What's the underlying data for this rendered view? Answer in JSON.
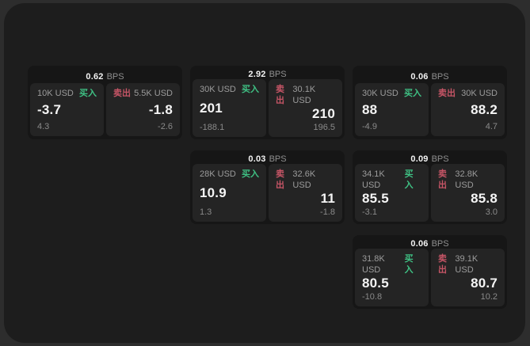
{
  "labels": {
    "bps_unit": "BPS",
    "buy": "买入",
    "sell": "卖出"
  },
  "colors": {
    "page_bg": "#2d2d2d",
    "panel_bg": "#1d1d1d",
    "card_bg": "#161616",
    "subcard_bg": "#242424",
    "buy_green": "#3fc184",
    "sell_red": "#c65566",
    "value_white": "#f5f5f5",
    "muted_gray": "#9c9c9c"
  },
  "cards": [
    {
      "bps": "0.62",
      "buy": {
        "notional": "10K USD",
        "value": "-3.7",
        "change": "4.3"
      },
      "sell": {
        "notional": "5.5K USD",
        "value": "-1.8",
        "change": "-2.6"
      }
    },
    {
      "bps": "2.92",
      "buy": {
        "notional": "30K USD",
        "value": "201",
        "change": "-188.1"
      },
      "sell": {
        "notional": "30.1K USD",
        "value": "210",
        "change": "196.5"
      }
    },
    {
      "bps": "0.06",
      "buy": {
        "notional": "30K USD",
        "value": "88",
        "change": "-4.9"
      },
      "sell": {
        "notional": "30K USD",
        "value": "88.2",
        "change": "4.7"
      }
    },
    {
      "bps": "0.03",
      "buy": {
        "notional": "28K USD",
        "value": "10.9",
        "change": "1.3"
      },
      "sell": {
        "notional": "32.6K USD",
        "value": "11",
        "change": "-1.8"
      }
    },
    {
      "bps": "0.09",
      "buy": {
        "notional": "34.1K USD",
        "value": "85.5",
        "change": "-3.1"
      },
      "sell": {
        "notional": "32.8K USD",
        "value": "85.8",
        "change": "3.0"
      }
    },
    {
      "bps": "0.06",
      "buy": {
        "notional": "31.8K USD",
        "value": "80.5",
        "change": "-10.8"
      },
      "sell": {
        "notional": "39.1K USD",
        "value": "80.7",
        "change": "10.2"
      }
    }
  ]
}
